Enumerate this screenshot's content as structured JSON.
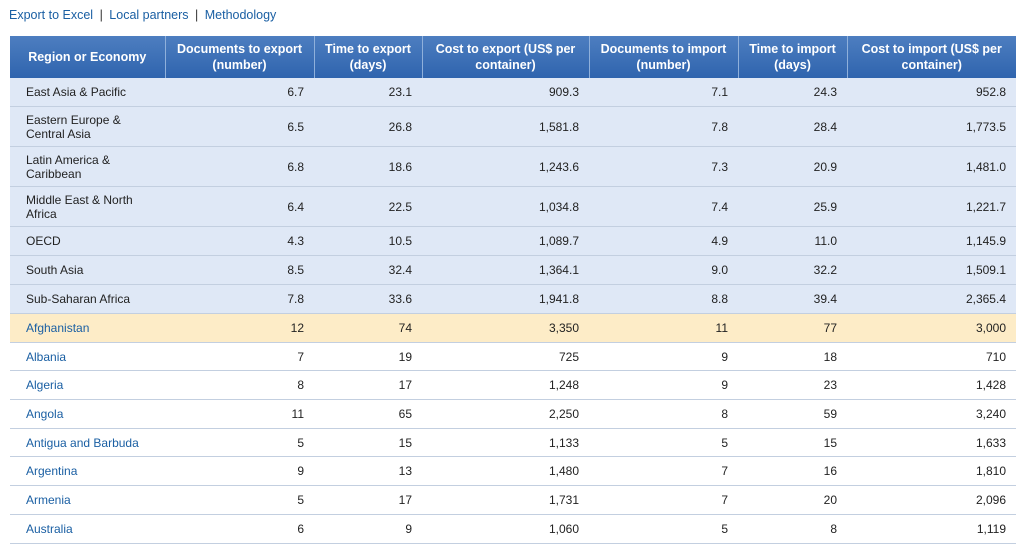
{
  "links": {
    "export_excel": "Export to Excel",
    "local_partners": "Local partners",
    "methodology": "Methodology",
    "separator": "|"
  },
  "table": {
    "headers": [
      "Region or Economy",
      "Documents to export (number)",
      "Time to export (days)",
      "Cost to export (US$ per container)",
      "Documents to import (number)",
      "Time to import (days)",
      "Cost to import (US$ per container)"
    ],
    "regions": [
      [
        "East Asia & Pacific",
        "6.7",
        "23.1",
        "909.3",
        "7.1",
        "24.3",
        "952.8"
      ],
      [
        "Eastern Europe & Central Asia",
        "6.5",
        "26.8",
        "1,581.8",
        "7.8",
        "28.4",
        "1,773.5"
      ],
      [
        "Latin America & Caribbean",
        "6.8",
        "18.6",
        "1,243.6",
        "7.3",
        "20.9",
        "1,481.0"
      ],
      [
        "Middle East & North Africa",
        "6.4",
        "22.5",
        "1,034.8",
        "7.4",
        "25.9",
        "1,221.7"
      ],
      [
        "OECD",
        "4.3",
        "10.5",
        "1,089.7",
        "4.9",
        "11.0",
        "1,145.9"
      ],
      [
        "South Asia",
        "8.5",
        "32.4",
        "1,364.1",
        "9.0",
        "32.2",
        "1,509.1"
      ],
      [
        "Sub-Saharan Africa",
        "7.8",
        "33.6",
        "1,941.8",
        "8.8",
        "39.4",
        "2,365.4"
      ]
    ],
    "countries": [
      [
        "Afghanistan",
        "12",
        "74",
        "3,350",
        "11",
        "77",
        "3,000"
      ],
      [
        "Albania",
        "7",
        "19",
        "725",
        "9",
        "18",
        "710"
      ],
      [
        "Algeria",
        "8",
        "17",
        "1,248",
        "9",
        "23",
        "1,428"
      ],
      [
        "Angola",
        "11",
        "65",
        "2,250",
        "8",
        "59",
        "3,240"
      ],
      [
        "Antigua and Barbuda",
        "5",
        "15",
        "1,133",
        "5",
        "15",
        "1,633"
      ],
      [
        "Argentina",
        "9",
        "13",
        "1,480",
        "7",
        "16",
        "1,810"
      ],
      [
        "Armenia",
        "5",
        "17",
        "1,731",
        "7",
        "20",
        "2,096"
      ],
      [
        "Australia",
        "6",
        "9",
        "1,060",
        "5",
        "8",
        "1,119"
      ]
    ],
    "highlighted_country": "Afghanistan"
  },
  "colors": {
    "header_bg": "#3a6fb5",
    "region_row_bg": "#dfe8f6",
    "highlight_row_bg": "#fdecc7",
    "link": "#1a5fa3"
  }
}
